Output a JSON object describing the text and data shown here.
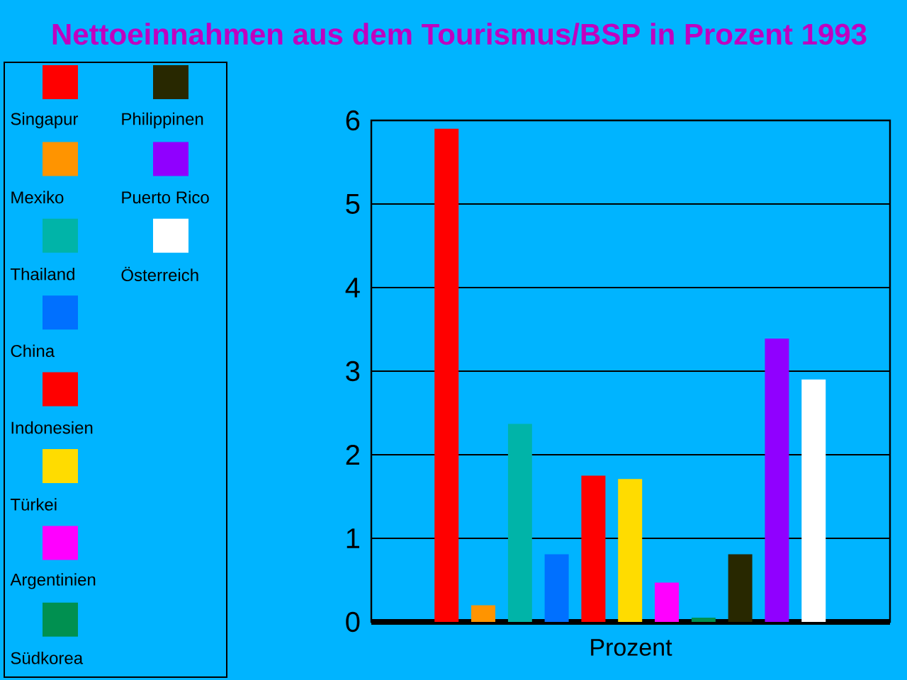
{
  "chart_data": {
    "type": "bar",
    "title": "Nettoeinnahmen aus dem Tourismus/BSP in Prozent 1993",
    "xlabel": "Prozent",
    "categories": [
      null,
      null,
      null,
      null,
      null,
      null,
      null,
      null,
      null,
      null,
      null
    ],
    "stacked": true,
    "series": [
      {
        "name": "Singapur",
        "color": "#ff0000",
        "values": [
          5.9,
          null,
          null,
          null,
          null,
          null,
          null,
          null,
          null,
          null,
          null
        ]
      },
      {
        "name": "Mexiko",
        "color": "#ff9400",
        "values": [
          null,
          0.2,
          null,
          null,
          null,
          null,
          null,
          null,
          null,
          null,
          null
        ]
      },
      {
        "name": "Thailand",
        "color": "#00b4a8",
        "values": [
          null,
          null,
          2.37,
          null,
          null,
          null,
          null,
          null,
          null,
          null,
          null
        ]
      },
      {
        "name": "China",
        "color": "#0070ff",
        "values": [
          null,
          null,
          null,
          0.81,
          null,
          null,
          null,
          null,
          null,
          null,
          null
        ]
      },
      {
        "name": "Indonesien",
        "color": "#ff0000",
        "values": [
          null,
          null,
          null,
          null,
          1.75,
          null,
          null,
          null,
          null,
          null,
          null
        ]
      },
      {
        "name": "Türkei",
        "color": "#ffdc00",
        "values": [
          null,
          null,
          null,
          null,
          null,
          1.71,
          null,
          null,
          null,
          null,
          null
        ]
      },
      {
        "name": "Argentinien",
        "color": "#ff00ff",
        "values": [
          null,
          null,
          null,
          null,
          null,
          null,
          0.47,
          null,
          null,
          null,
          null
        ]
      },
      {
        "name": "Südkorea",
        "color": "#009050",
        "values": [
          null,
          null,
          null,
          null,
          null,
          null,
          null,
          0.05,
          null,
          null,
          null
        ]
      },
      {
        "name": "Philippinen",
        "color": "#282800",
        "values": [
          null,
          null,
          null,
          null,
          null,
          null,
          null,
          null,
          0.81,
          null,
          null
        ]
      },
      {
        "name": "Puerto Rico",
        "color": "#9000ff",
        "values": [
          null,
          null,
          null,
          null,
          null,
          null,
          null,
          null,
          null,
          3.39,
          null
        ]
      },
      {
        "name": "Österreich",
        "color": "#ffffff",
        "values": [
          null,
          null,
          null,
          null,
          null,
          null,
          null,
          null,
          null,
          null,
          2.9
        ]
      }
    ],
    "ylim": [
      0,
      6
    ],
    "yticks": [
      0,
      1,
      2,
      3,
      4,
      5,
      6
    ],
    "grid": "y",
    "legend": "left"
  }
}
